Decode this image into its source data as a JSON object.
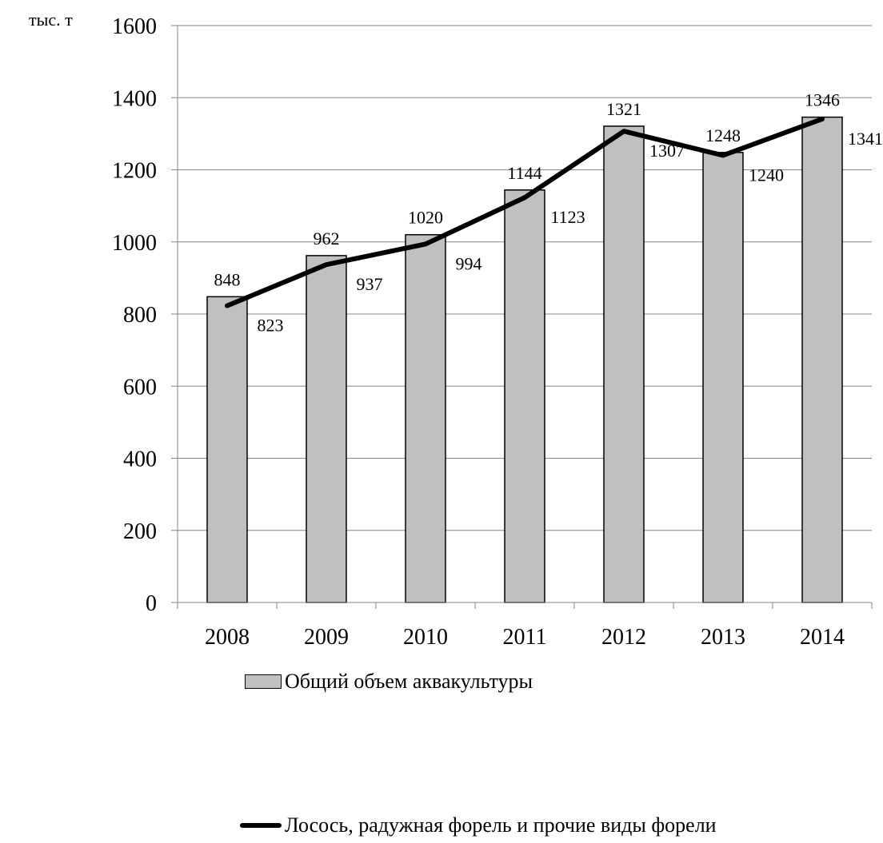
{
  "chart_data": {
    "type": "bar",
    "categories": [
      "2008",
      "2009",
      "2010",
      "2011",
      "2012",
      "2013",
      "2014"
    ],
    "ylabel": "тыс. т",
    "ylim": [
      0,
      1600
    ],
    "yticks": [
      0,
      200,
      400,
      600,
      800,
      1000,
      1200,
      1400,
      1600
    ],
    "grid": true,
    "legend_position": "bottom",
    "series": [
      {
        "name": "Общий объем аквакультуры",
        "type": "bar",
        "color": "#c0c0c0",
        "values": [
          848,
          962,
          1020,
          1144,
          1321,
          1248,
          1346
        ]
      },
      {
        "name": "Лосось, радужная форель и прочие виды форели",
        "type": "line",
        "color": "#000000",
        "values": [
          823,
          937,
          994,
          1123,
          1307,
          1240,
          1341
        ]
      }
    ]
  }
}
